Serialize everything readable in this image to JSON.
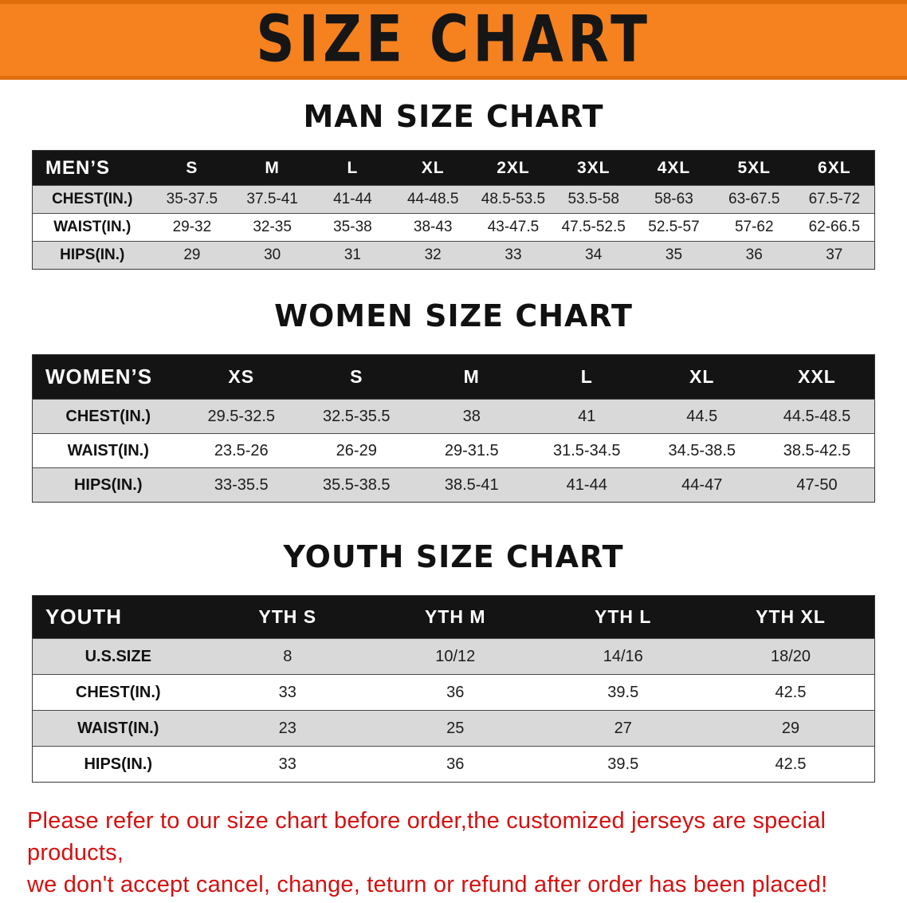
{
  "banner": {
    "title": "SIZE CHART",
    "background_color": "#f5821f",
    "text_color": "#161616"
  },
  "men": {
    "heading": "MAN SIZE CHART",
    "table": {
      "header": [
        "MEN’S",
        "S",
        "M",
        "L",
        "XL",
        "2XL",
        "3XL",
        "4XL",
        "5XL",
        "6XL"
      ],
      "rows": [
        [
          "CHEST(IN.)",
          "35-37.5",
          "37.5-41",
          "41-44",
          "44-48.5",
          "48.5-53.5",
          "53.5-58",
          "58-63",
          "63-67.5",
          "67.5-72"
        ],
        [
          "WAIST(IN.)",
          "29-32",
          "32-35",
          "35-38",
          "38-43",
          "43-47.5",
          "47.5-52.5",
          "52.5-57",
          "57-62",
          "62-66.5"
        ],
        [
          "HIPS(IN.)",
          "29",
          "30",
          "31",
          "32",
          "33",
          "34",
          "35",
          "36",
          "37"
        ]
      ]
    }
  },
  "women": {
    "heading": "WOMEN SIZE CHART",
    "table": {
      "header": [
        "WOMEN’S",
        "XS",
        "S",
        "M",
        "L",
        "XL",
        "XXL"
      ],
      "rows": [
        [
          "CHEST(IN.)",
          "29.5-32.5",
          "32.5-35.5",
          "38",
          "41",
          "44.5",
          "44.5-48.5"
        ],
        [
          "WAIST(IN.)",
          "23.5-26",
          "26-29",
          "29-31.5",
          "31.5-34.5",
          "34.5-38.5",
          "38.5-42.5"
        ],
        [
          "HIPS(IN.)",
          "33-35.5",
          "35.5-38.5",
          "38.5-41",
          "41-44",
          "44-47",
          "47-50"
        ]
      ]
    }
  },
  "youth": {
    "heading": "YOUTH SIZE CHART",
    "table": {
      "header": [
        "YOUTH",
        "YTH S",
        "YTH M",
        "YTH L",
        "YTH XL"
      ],
      "rows": [
        [
          "U.S.SIZE",
          "8",
          "10/12",
          "14/16",
          "18/20"
        ],
        [
          "CHEST(IN.)",
          "33",
          "36",
          "39.5",
          "42.5"
        ],
        [
          "WAIST(IN.)",
          "23",
          "25",
          "27",
          "29"
        ],
        [
          "HIPS(IN.)",
          "33",
          "36",
          "39.5",
          "42.5"
        ]
      ]
    }
  },
  "disclaimer": {
    "text_color": "#d41111",
    "line1": "Please refer to our size chart before order,the customized jerseys are special products,",
    "line2": "we don't accept cancel, change, teturn or refund after order has been placed!"
  }
}
